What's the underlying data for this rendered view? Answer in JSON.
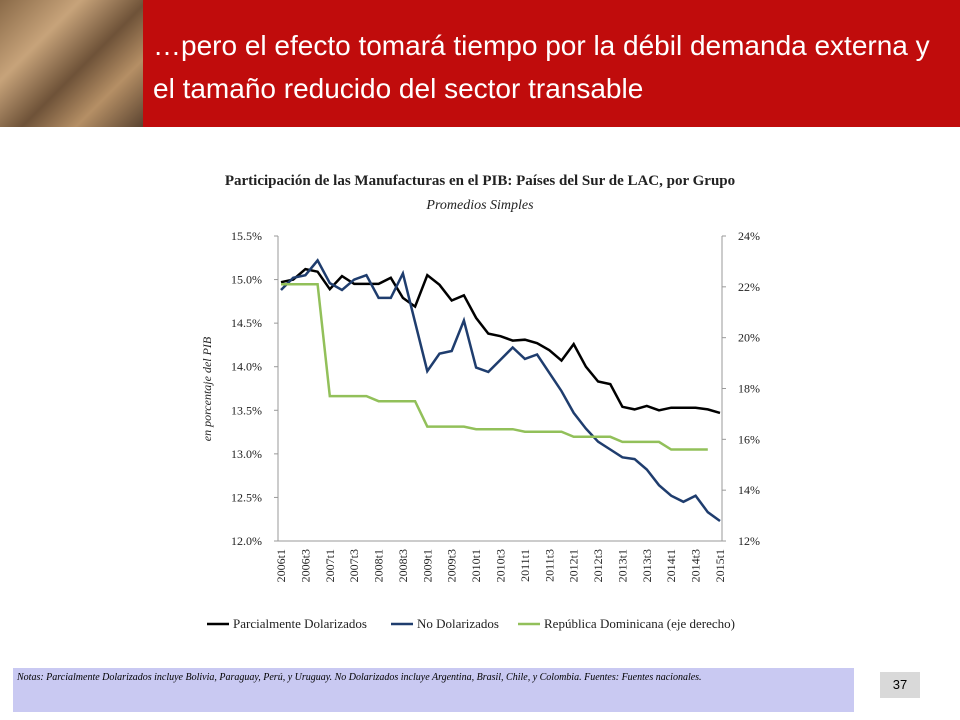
{
  "header": {
    "title": "…pero el efecto tomará tiempo por la débil demanda externa y el tamaño reducido del sector transable"
  },
  "chart_data": {
    "type": "line",
    "title": "Participación de las Manufacturas en el PIB: Países del Sur de LAC, por Grupo",
    "subtitle": "Promedios Simples",
    "ylabel": "en porcentaje del PIB",
    "categories": [
      "2006t1",
      null,
      "2006t3",
      null,
      "2007t1",
      null,
      "2007t3",
      null,
      "2008t1",
      null,
      "2008t3",
      null,
      "2009t1",
      null,
      "2009t3",
      null,
      "2010t1",
      null,
      "2010t3",
      null,
      "2011t1",
      null,
      "2011t3",
      null,
      "2012t1",
      null,
      "2012t3",
      null,
      "2013t1",
      null,
      "2013t3",
      null,
      "2014t1",
      null,
      "2014t3",
      null,
      "2015t1"
    ],
    "series": [
      {
        "name": "Parcialmente Dolarizados",
        "color": "#000000",
        "values": [
          14.97,
          15.0,
          15.12,
          15.09,
          14.89,
          15.04,
          14.95,
          14.95,
          14.95,
          15.02,
          14.79,
          14.69,
          15.05,
          14.94,
          14.76,
          14.82,
          14.56,
          14.38,
          14.35,
          14.3,
          14.31,
          14.27,
          14.19,
          14.07,
          14.26,
          14.0,
          13.83,
          13.8,
          13.54,
          13.51,
          13.55,
          13.5,
          13.53,
          13.53,
          13.53,
          13.51,
          13.47
        ]
      },
      {
        "name": "No Dolarizados",
        "color": "#1f3d6e",
        "values": [
          14.88,
          15.02,
          15.05,
          15.22,
          14.96,
          14.88,
          15.0,
          15.05,
          14.79,
          14.79,
          15.07,
          14.51,
          13.95,
          14.15,
          14.18,
          14.53,
          13.99,
          13.94,
          14.08,
          14.22,
          14.09,
          14.14,
          13.93,
          13.72,
          13.47,
          13.29,
          13.14,
          13.05,
          12.96,
          12.94,
          12.82,
          12.64,
          12.52,
          12.45,
          12.52,
          12.33,
          12.23
        ]
      },
      {
        "name": "República Dominicana (eje derecho)",
        "color": "#92c05a",
        "axis": "y2",
        "values": [
          22.1,
          22.1,
          22.1,
          22.1,
          17.7,
          17.7,
          17.7,
          17.7,
          17.5,
          17.5,
          17.5,
          17.5,
          16.5,
          16.5,
          16.5,
          16.5,
          16.4,
          16.4,
          16.4,
          16.4,
          16.3,
          16.3,
          16.3,
          16.3,
          16.1,
          16.1,
          16.1,
          16.1,
          15.9,
          15.9,
          15.9,
          15.9,
          15.6,
          15.6,
          15.6,
          15.6,
          null
        ]
      }
    ],
    "ylim": [
      12,
      15.5
    ],
    "yticks": [
      {
        "value": 12,
        "label": "12.0%"
      },
      {
        "value": 12.5,
        "label": "12.5%"
      },
      {
        "value": 13,
        "label": "13.0%"
      },
      {
        "value": 13.5,
        "label": "13.5%"
      },
      {
        "value": 14,
        "label": "14.0%"
      },
      {
        "value": 14.5,
        "label": "14.5%"
      },
      {
        "value": 15,
        "label": "15.0%"
      },
      {
        "value": 15.5,
        "label": "15.5%"
      }
    ],
    "y2lim": [
      12,
      24
    ],
    "y2ticks": [
      {
        "value": 12,
        "label": "12%"
      },
      {
        "value": 14,
        "label": "14%"
      },
      {
        "value": 16,
        "label": "16%"
      },
      {
        "value": 18,
        "label": "18%"
      },
      {
        "value": 20,
        "label": "20%"
      },
      {
        "value": 22,
        "label": "22%"
      },
      {
        "value": 24,
        "label": "24%"
      }
    ],
    "grid": false,
    "legend": "bottom"
  },
  "notes": "Notas: Parcialmente Dolarizados incluye Bolivia, Paraguay, Perú, y Uruguay. No Dolarizados incluye Argentina, Brasil, Chile, y Colombia. Fuentes: Fuentes nacionales.",
  "page_number": "37"
}
